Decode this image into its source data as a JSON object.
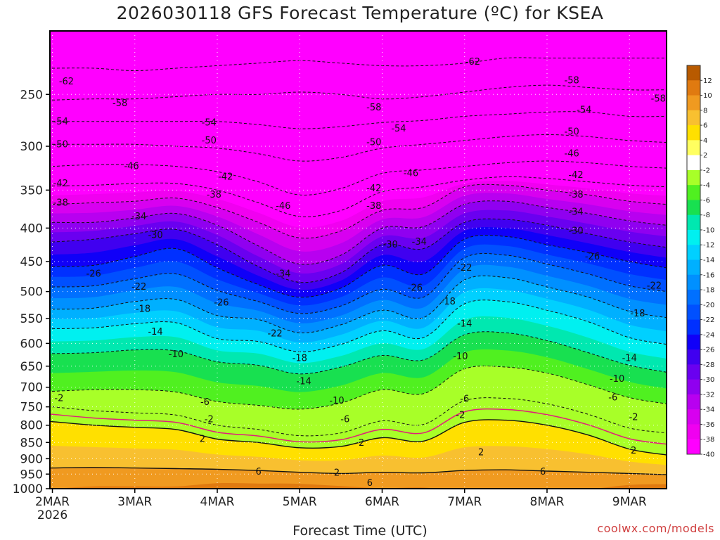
{
  "chart_data": {
    "type": "heatmap",
    "title": "2026030118 GFS Forecast Temperature (ºC) for KSEA",
    "xlabel": "Forecast Time (UTC)",
    "ylabel": "",
    "credit": "coolwx.com/models",
    "y_scale": "pressure (log, inverted)",
    "ylim": [
      1000,
      200
    ],
    "y_ticks": [
      {
        "value": 250,
        "label": "250"
      },
      {
        "value": 300,
        "label": "300"
      },
      {
        "value": 350,
        "label": "350"
      },
      {
        "value": 400,
        "label": "400"
      },
      {
        "value": 450,
        "label": "450"
      },
      {
        "value": 500,
        "label": "500"
      },
      {
        "value": 550,
        "label": "550"
      },
      {
        "value": 600,
        "label": "600"
      },
      {
        "value": 650,
        "label": "650"
      },
      {
        "value": 700,
        "label": "700"
      },
      {
        "value": 750,
        "label": "750"
      },
      {
        "value": 800,
        "label": "800"
      },
      {
        "value": 850,
        "label": "850"
      },
      {
        "value": 900,
        "label": "900"
      },
      {
        "value": 950,
        "label": "950"
      },
      {
        "value": 1000,
        "label": "1000"
      }
    ],
    "xlim": [
      -0.03,
      7.45
    ],
    "x_ticks": [
      {
        "value": 0,
        "label": "2MAR",
        "sublabel": "2026"
      },
      {
        "value": 1,
        "label": "3MAR"
      },
      {
        "value": 2,
        "label": "4MAR"
      },
      {
        "value": 3,
        "label": "5MAR"
      },
      {
        "value": 4,
        "label": "6MAR"
      },
      {
        "value": 5,
        "label": "7MAR"
      },
      {
        "value": 6,
        "label": "8MAR"
      },
      {
        "value": 7,
        "label": "9MAR"
      }
    ],
    "grid": true,
    "legend": "right colorbar",
    "colorbar": {
      "labels": [
        "12",
        "10",
        "8",
        "6",
        "4",
        "2",
        "-2",
        "-4",
        "-6",
        "-8",
        "-10",
        "-12",
        "-14",
        "-16",
        "-18",
        "-20",
        "-22",
        "-24",
        "-26",
        "-28",
        "-30",
        "-32",
        "-34",
        "-36",
        "-38",
        "-40"
      ],
      "colors": [
        "#b85a00",
        "#e07a10",
        "#f09a20",
        "#f8c030",
        "#ffe000",
        "#ffff60",
        "#ffffff",
        "#a8ff28",
        "#50f020",
        "#18e050",
        "#00e8b0",
        "#00f0f0",
        "#00d0ff",
        "#00b0ff",
        "#0090ff",
        "#0070ff",
        "#0050ff",
        "#0030ff",
        "#1000f8",
        "#4000f0",
        "#6a00f0",
        "#9000f0",
        "#b800f0",
        "#d800f0",
        "#f000f0",
        "#ff00ff"
      ]
    },
    "times": [
      0,
      0.5,
      1,
      1.5,
      2,
      2.5,
      3,
      3.5,
      4,
      4.5,
      5,
      5.5,
      6,
      6.5,
      7,
      7.45
    ],
    "isotherms": [
      {
        "t": -62,
        "p": [
          228,
          228,
          230,
          228,
          226,
          224,
          222,
          224,
          226,
          226,
          224,
          220,
          220,
          220,
          220,
          220
        ]
      },
      {
        "t": -58,
        "p": [
          255,
          254,
          254,
          252,
          250,
          250,
          248,
          250,
          254,
          252,
          248,
          244,
          242,
          244,
          246,
          246
        ]
      },
      {
        "t": -54,
        "p": [
          275,
          275,
          275,
          275,
          275,
          278,
          282,
          280,
          276,
          274,
          270,
          268,
          266,
          266,
          270,
          270
        ]
      },
      {
        "t": -50,
        "p": [
          298,
          298,
          298,
          300,
          302,
          308,
          316,
          312,
          302,
          298,
          294,
          290,
          288,
          290,
          294,
          296
        ]
      },
      {
        "t": -46,
        "p": [
          322,
          320,
          320,
          322,
          328,
          340,
          356,
          348,
          330,
          326,
          322,
          318,
          316,
          318,
          322,
          324
        ]
      },
      {
        "t": -42,
        "p": [
          345,
          344,
          342,
          342,
          350,
          366,
          384,
          376,
          352,
          346,
          338,
          334,
          336,
          340,
          344,
          346
        ]
      },
      {
        "t": -38,
        "p": [
          368,
          366,
          364,
          360,
          372,
          392,
          414,
          404,
          376,
          372,
          346,
          344,
          350,
          356,
          364,
          368
        ]
      },
      {
        "t": -34,
        "p": [
          392,
          392,
          386,
          380,
          396,
          426,
          454,
          440,
          400,
          398,
          368,
          364,
          372,
          380,
          390,
          396
        ]
      },
      {
        "t": -30,
        "p": [
          420,
          416,
          408,
          402,
          424,
          458,
          484,
          468,
          424,
          430,
          392,
          388,
          396,
          408,
          420,
          428
        ]
      },
      {
        "t": -26,
        "p": [
          458,
          456,
          442,
          430,
          460,
          488,
          510,
          494,
          456,
          470,
          416,
          412,
          424,
          436,
          450,
          460
        ]
      },
      {
        "t": -22,
        "p": [
          492,
          490,
          478,
          470,
          498,
          518,
          540,
          526,
          496,
          510,
          444,
          440,
          454,
          470,
          490,
          500
        ]
      },
      {
        "t": -18,
        "p": [
          532,
          530,
          518,
          514,
          544,
          552,
          578,
          562,
          534,
          548,
          480,
          476,
          492,
          510,
          536,
          548
        ]
      },
      {
        "t": -14,
        "p": [
          570,
          568,
          560,
          558,
          590,
          596,
          618,
          602,
          574,
          588,
          522,
          518,
          534,
          556,
          588,
          602
        ]
      },
      {
        "t": -10,
        "p": [
          622,
          620,
          614,
          616,
          640,
          648,
          668,
          652,
          626,
          636,
          582,
          578,
          594,
          620,
          648,
          664
        ]
      },
      {
        "t": -6,
        "p": [
          710,
          706,
          706,
          712,
          736,
          746,
          756,
          740,
          706,
          716,
          656,
          652,
          666,
          694,
          726,
          742
        ]
      },
      {
        "t": -2,
        "p": [
          750,
          760,
          766,
          772,
          800,
          812,
          830,
          822,
          788,
          798,
          734,
          728,
          742,
          770,
          808,
          822
        ]
      },
      {
        "t": 2,
        "p": [
          790,
          800,
          806,
          812,
          840,
          850,
          866,
          862,
          836,
          846,
          792,
          786,
          800,
          828,
          870,
          888
        ]
      },
      {
        "t": 6,
        "p": [
          930,
          928,
          930,
          932,
          934,
          938,
          944,
          948,
          944,
          946,
          938,
          936,
          940,
          944,
          948,
          952
        ]
      }
    ],
    "contour_labels": [
      {
        "t": -62,
        "x": 0.17,
        "p": 239
      },
      {
        "t": -62,
        "x": 5.1,
        "p": 223
      },
      {
        "t": -58,
        "x": 0.82,
        "p": 258
      },
      {
        "t": -58,
        "x": 3.9,
        "p": 262
      },
      {
        "t": -58,
        "x": 6.3,
        "p": 238
      },
      {
        "t": -58,
        "x": 7.35,
        "p": 254
      },
      {
        "t": -54,
        "x": 0.1,
        "p": 275
      },
      {
        "t": -54,
        "x": 1.9,
        "p": 276
      },
      {
        "t": -54,
        "x": 4.2,
        "p": 282
      },
      {
        "t": -54,
        "x": 6.45,
        "p": 264
      },
      {
        "t": -50,
        "x": 0.1,
        "p": 298
      },
      {
        "t": -50,
        "x": 1.9,
        "p": 294
      },
      {
        "t": -50,
        "x": 3.9,
        "p": 296
      },
      {
        "t": -50,
        "x": 6.3,
        "p": 285
      },
      {
        "t": -46,
        "x": 0.96,
        "p": 322
      },
      {
        "t": -46,
        "x": 2.8,
        "p": 370
      },
      {
        "t": -46,
        "x": 4.35,
        "p": 330
      },
      {
        "t": -46,
        "x": 6.3,
        "p": 308
      },
      {
        "t": -42,
        "x": 0.1,
        "p": 342
      },
      {
        "t": -42,
        "x": 2.1,
        "p": 334
      },
      {
        "t": -42,
        "x": 3.9,
        "p": 348
      },
      {
        "t": -42,
        "x": 6.35,
        "p": 332
      },
      {
        "t": -38,
        "x": 0.1,
        "p": 366
      },
      {
        "t": -38,
        "x": 1.96,
        "p": 356
      },
      {
        "t": -38,
        "x": 3.9,
        "p": 370
      },
      {
        "t": -38,
        "x": 6.35,
        "p": 356
      },
      {
        "t": -34,
        "x": 1.05,
        "p": 384
      },
      {
        "t": -34,
        "x": 4.45,
        "p": 420
      },
      {
        "t": -34,
        "x": 2.8,
        "p": 470
      },
      {
        "t": -34,
        "x": 6.35,
        "p": 378
      },
      {
        "t": -30,
        "x": 1.25,
        "p": 410
      },
      {
        "t": -30,
        "x": 4.1,
        "p": 424
      },
      {
        "t": -30,
        "x": 6.35,
        "p": 404
      },
      {
        "t": -26,
        "x": 0.5,
        "p": 470
      },
      {
        "t": -26,
        "x": 2.05,
        "p": 520
      },
      {
        "t": -26,
        "x": 4.4,
        "p": 494
      },
      {
        "t": -26,
        "x": 6.55,
        "p": 442
      },
      {
        "t": -22,
        "x": 1.05,
        "p": 492
      },
      {
        "t": -22,
        "x": 2.7,
        "p": 580
      },
      {
        "t": -22,
        "x": 5.0,
        "p": 460
      },
      {
        "t": -22,
        "x": 7.3,
        "p": 490
      },
      {
        "t": -18,
        "x": 1.1,
        "p": 532
      },
      {
        "t": -18,
        "x": 3.0,
        "p": 632
      },
      {
        "t": -18,
        "x": 4.8,
        "p": 518
      },
      {
        "t": -18,
        "x": 7.1,
        "p": 540
      },
      {
        "t": -14,
        "x": 1.25,
        "p": 576
      },
      {
        "t": -14,
        "x": 3.05,
        "p": 686
      },
      {
        "t": -14,
        "x": 5.0,
        "p": 560
      },
      {
        "t": -14,
        "x": 7.0,
        "p": 632
      },
      {
        "t": -10,
        "x": 1.5,
        "p": 624
      },
      {
        "t": -10,
        "x": 3.45,
        "p": 734
      },
      {
        "t": -10,
        "x": 4.95,
        "p": 628
      },
      {
        "t": -10,
        "x": 6.85,
        "p": 680
      },
      {
        "t": -6,
        "x": 1.85,
        "p": 738
      },
      {
        "t": -6,
        "x": 3.55,
        "p": 784
      },
      {
        "t": -6,
        "x": 5.0,
        "p": 730
      },
      {
        "t": -6,
        "x": 6.8,
        "p": 726
      },
      {
        "t": -2,
        "x": 0.08,
        "p": 728
      },
      {
        "t": -2,
        "x": 1.9,
        "p": 784
      },
      {
        "t": -2,
        "x": 4.95,
        "p": 772
      },
      {
        "t": -2,
        "x": 7.05,
        "p": 778
      },
      {
        "t": 2,
        "x": 1.82,
        "p": 840
      },
      {
        "t": 2,
        "x": 3.75,
        "p": 852
      },
      {
        "t": 2,
        "x": 5.2,
        "p": 880
      },
      {
        "t": 2,
        "x": 7.05,
        "p": 875
      },
      {
        "t": 2,
        "x": 3.45,
        "p": 946
      },
      {
        "t": 6,
        "x": 2.5,
        "p": 942
      },
      {
        "t": 6,
        "x": 3.85,
        "p": 980
      },
      {
        "t": 6,
        "x": 5.95,
        "p": 942
      }
    ]
  }
}
